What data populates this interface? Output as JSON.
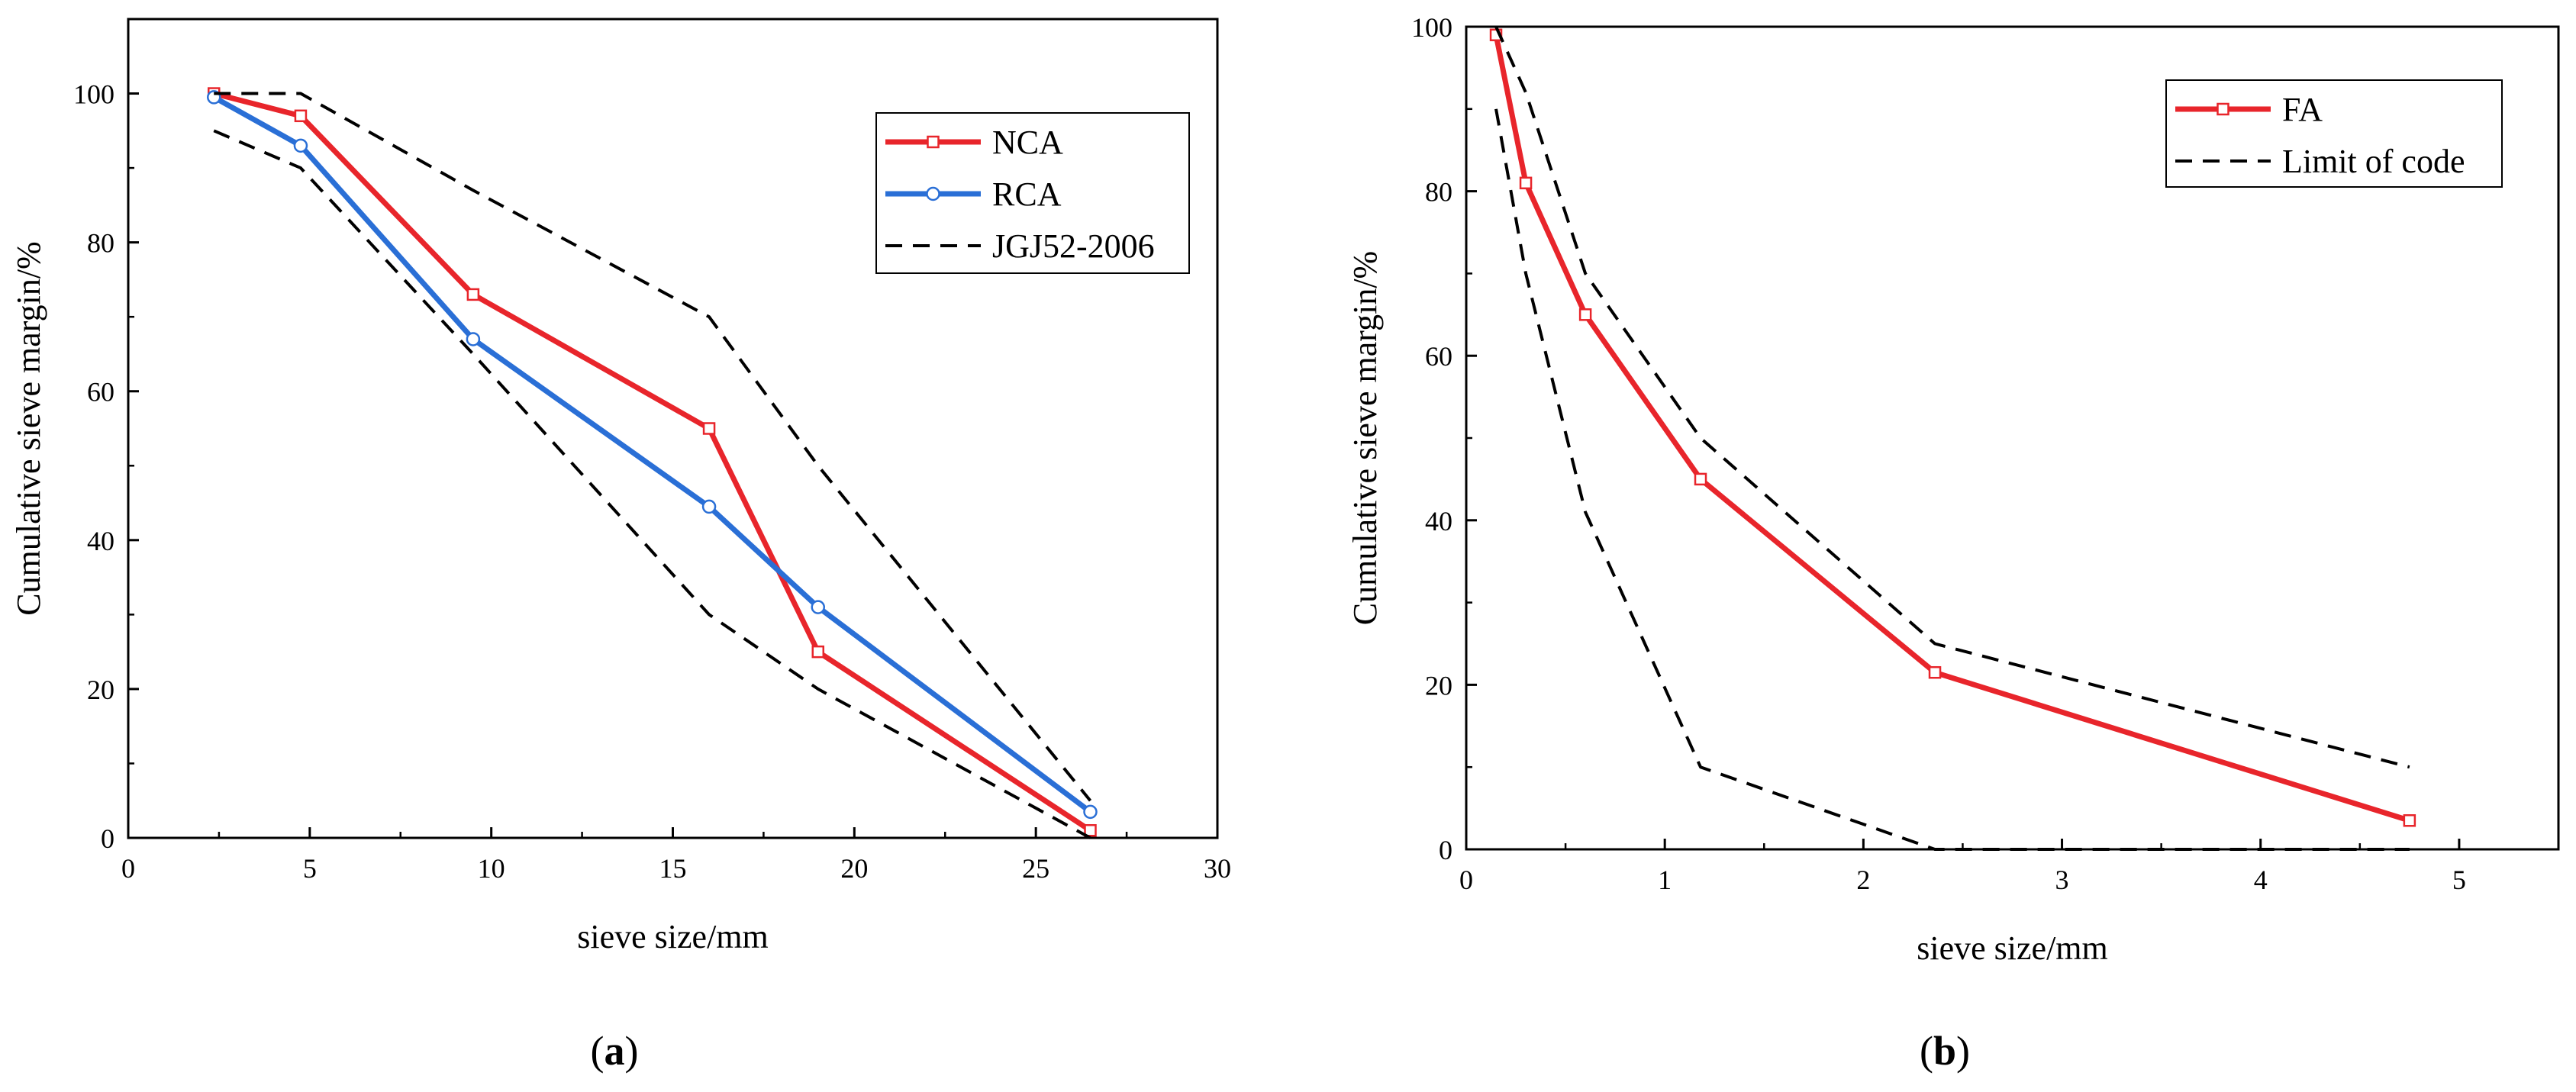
{
  "figure": {
    "panel_labels": [
      "(a)",
      "(b)"
    ],
    "colors": {
      "red": "#e8252b",
      "blue": "#2a6fd6",
      "black": "#000000"
    }
  },
  "chart_data": [
    {
      "id": "a",
      "type": "line",
      "panel_label": "(a)",
      "xlabel": "sieve size/mm",
      "ylabel": "Cumulative sieve margin/%",
      "xlim": [
        0,
        30
      ],
      "ylim": [
        0,
        110
      ],
      "xticks": [
        0,
        5,
        10,
        15,
        20,
        25,
        30
      ],
      "yticks": [
        0,
        20,
        40,
        60,
        80,
        100
      ],
      "legend_position": "top-right",
      "series": [
        {
          "name": "NCA",
          "style": "solid",
          "color": "#e8252b",
          "marker": "square",
          "x": [
            2.36,
            4.75,
            9.5,
            16,
            19,
            26.5
          ],
          "y": [
            100,
            97,
            73,
            55,
            25,
            1
          ]
        },
        {
          "name": "RCA",
          "style": "solid",
          "color": "#2a6fd6",
          "marker": "circle",
          "x": [
            2.36,
            4.75,
            9.5,
            16,
            19,
            26.5
          ],
          "y": [
            99.5,
            93,
            67,
            44.5,
            31,
            3.5
          ]
        },
        {
          "name": "JGJ52-2006",
          "style": "dashed",
          "color": "#000000",
          "marker": "none",
          "x": [
            2.36,
            4.75,
            9.5,
            16,
            19,
            26.5
          ],
          "y": [
            100,
            100,
            87,
            70,
            50,
            5
          ]
        },
        {
          "name": "JGJ52-2006",
          "style": "dashed",
          "color": "#000000",
          "marker": "none",
          "legend": false,
          "x": [
            2.36,
            4.75,
            9.5,
            16,
            19,
            26.5
          ],
          "y": [
            95,
            90,
            65,
            30,
            20,
            0
          ]
        }
      ]
    },
    {
      "id": "b",
      "type": "line",
      "panel_label": "(b)",
      "xlabel": "sieve size/mm",
      "ylabel": "Cumulative sieve margin/%",
      "xlim": [
        0,
        5.5
      ],
      "ylim": [
        0,
        100
      ],
      "xticks": [
        0,
        1,
        2,
        3,
        4,
        5
      ],
      "yticks": [
        0,
        20,
        40,
        60,
        80,
        100
      ],
      "legend_position": "top-right",
      "series": [
        {
          "name": "FA",
          "style": "solid",
          "color": "#e8252b",
          "marker": "square",
          "x": [
            0.15,
            0.3,
            0.6,
            1.18,
            2.36,
            4.75
          ],
          "y": [
            99,
            81,
            65,
            45,
            21.5,
            3.5
          ]
        },
        {
          "name": "Limit of code",
          "style": "dashed",
          "color": "#000000",
          "marker": "none",
          "x": [
            0.15,
            0.3,
            0.6,
            1.18,
            2.36,
            4.75
          ],
          "y": [
            100,
            92,
            70,
            50,
            25,
            10
          ]
        },
        {
          "name": "Limit of code",
          "style": "dashed",
          "color": "#000000",
          "marker": "none",
          "legend": false,
          "x": [
            0.15,
            0.3,
            0.6,
            1.18,
            2.36,
            4.75
          ],
          "y": [
            90,
            70,
            41,
            10,
            0,
            0
          ]
        }
      ]
    }
  ]
}
